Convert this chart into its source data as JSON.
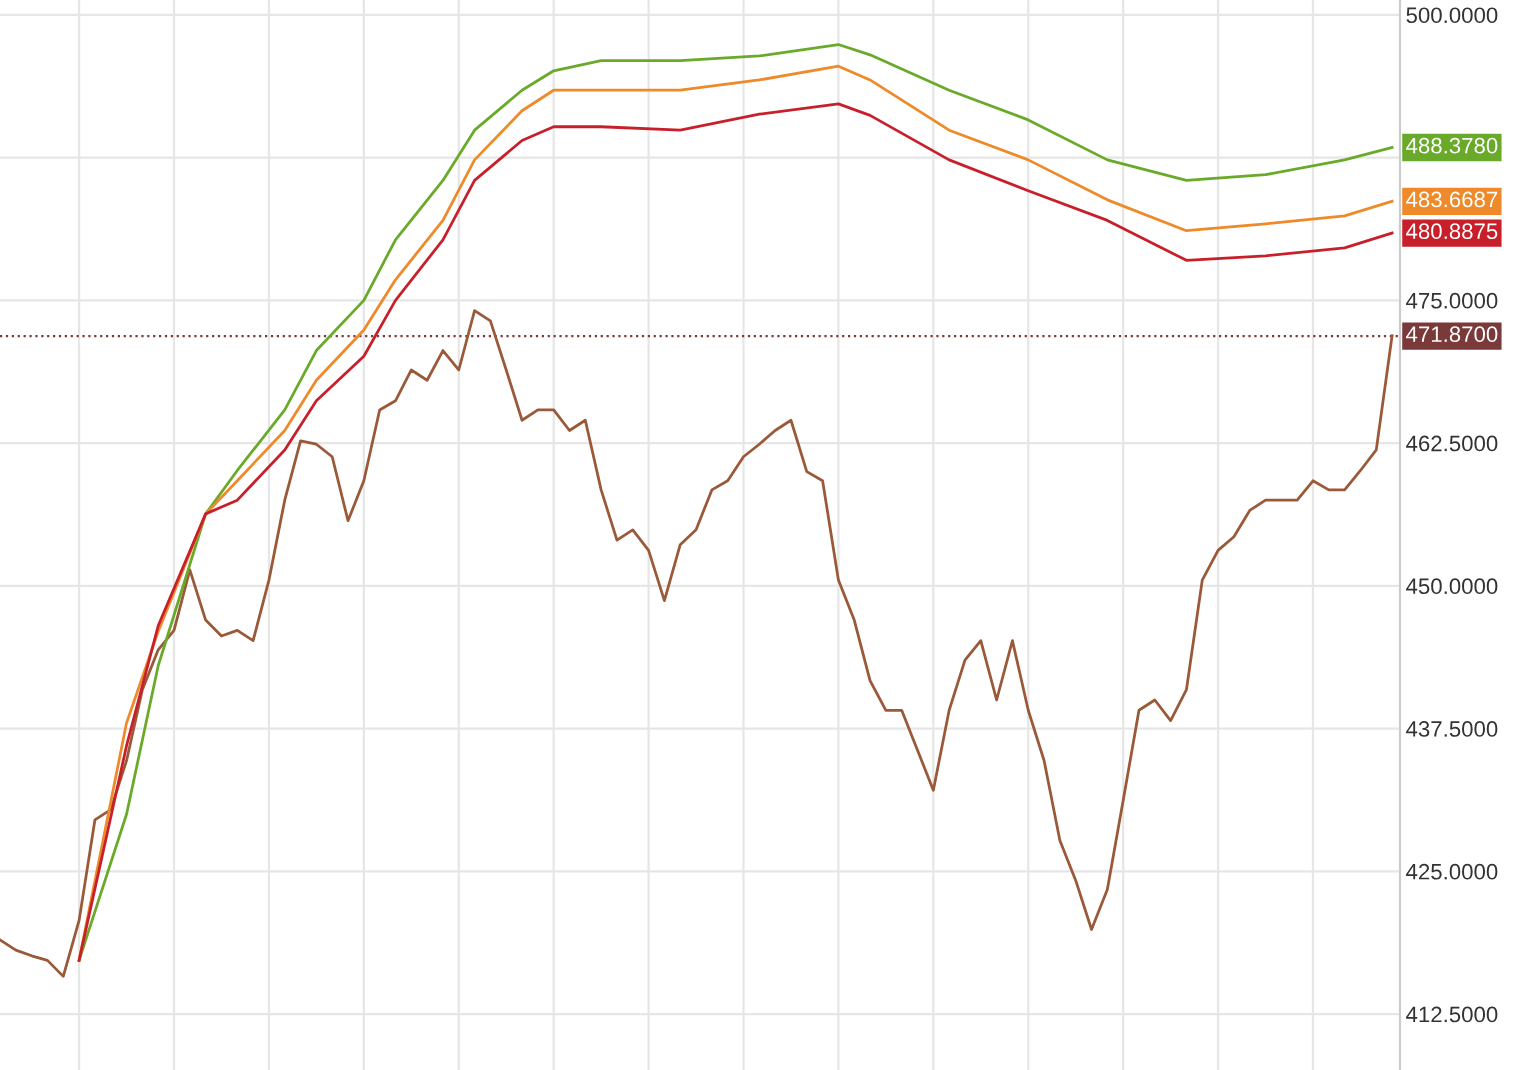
{
  "chart_data": {
    "type": "line",
    "categories": [
      null,
      null,
      null,
      null,
      null,
      null,
      null,
      null,
      null,
      null,
      null,
      null,
      null,
      null,
      null,
      null,
      null,
      null,
      null,
      null,
      null,
      null,
      null,
      null,
      null,
      null,
      null,
      null,
      null,
      null,
      null,
      null,
      null,
      null,
      null,
      null,
      null,
      null,
      null,
      null,
      null,
      null,
      null,
      null,
      null,
      null,
      null,
      null,
      null,
      null,
      null,
      null,
      null,
      null,
      null,
      null,
      null,
      null,
      null,
      null,
      null,
      null,
      null,
      null,
      null,
      null,
      null,
      null,
      null,
      null,
      null,
      null,
      null,
      null,
      null,
      null,
      null,
      null,
      null,
      null,
      null,
      null,
      null,
      null,
      null,
      null,
      null,
      null,
      null
    ],
    "series": [
      {
        "color": "#9a5a3a",
        "values": [
          419.0,
          418.1,
          417.6,
          417.2,
          415.8,
          420.7,
          429.5,
          430.4,
          434.7,
          440.9,
          444.4,
          446.1,
          451.4,
          447.0,
          445.6,
          446.1,
          445.2,
          450.5,
          457.5,
          462.7,
          462.4,
          461.3,
          455.7,
          459.2,
          465.4,
          466.2,
          468.9,
          468.0,
          470.6,
          468.9,
          474.1,
          473.2,
          468.9,
          464.5,
          465.4,
          465.4,
          463.6,
          464.5,
          458.4,
          454.0,
          454.9,
          453.1,
          448.7,
          453.6,
          454.9,
          458.4,
          459.2,
          461.3,
          462.4,
          463.6,
          464.5,
          460.0,
          459.2,
          450.5,
          447.0,
          441.7,
          439.1,
          439.1,
          435.6,
          432.1,
          439.1,
          443.5,
          445.2,
          440.0,
          445.2,
          439.1,
          434.7,
          427.7,
          424.2,
          419.9,
          423.4,
          431.2,
          439.1,
          440.0,
          438.2,
          440.9,
          450.5,
          453.1,
          454.3,
          456.6,
          457.5,
          457.5,
          457.5,
          459.2,
          458.4,
          458.4,
          460.1,
          461.9,
          471.9
        ]
      },
      {
        "color": "#6aaa2a",
        "values": [
          null,
          null,
          null,
          null,
          null,
          417.2,
          null,
          null,
          430.0,
          null,
          443.0,
          null,
          null,
          456.3,
          null,
          460.1,
          null,
          null,
          465.4,
          null,
          470.6,
          null,
          null,
          475.0,
          null,
          480.3,
          null,
          null,
          485.5,
          null,
          489.9,
          null,
          null,
          493.4,
          null,
          495.1,
          null,
          null,
          496.0,
          null,
          null,
          null,
          null,
          496.0,
          null,
          null,
          null,
          null,
          496.4,
          null,
          null,
          null,
          null,
          497.4,
          null,
          496.5,
          null,
          null,
          null,
          null,
          493.4,
          null,
          null,
          null,
          null,
          490.8,
          null,
          null,
          null,
          null,
          487.3,
          null,
          null,
          null,
          null,
          485.5,
          null,
          null,
          null,
          null,
          486.0,
          null,
          null,
          null,
          null,
          487.3,
          null,
          null,
          488.378
        ],
        "value_labels": [
          null,
          null,
          null,
          null,
          null,
          null,
          null,
          null,
          null,
          null,
          null,
          null,
          null,
          null,
          null,
          null,
          null,
          null,
          null,
          null,
          null,
          null,
          null,
          null,
          null,
          null,
          null,
          null,
          null,
          null,
          null,
          null,
          null,
          null,
          null,
          null,
          null,
          null,
          null,
          null,
          null,
          null,
          null,
          null,
          null,
          null,
          null,
          null,
          null,
          null,
          null,
          null,
          null,
          null,
          null,
          null,
          null,
          null,
          null,
          null,
          null,
          null,
          null,
          null,
          null,
          null,
          null,
          null,
          null,
          null,
          null,
          null,
          null,
          null,
          null,
          null,
          null,
          null,
          null,
          null,
          null,
          null,
          null,
          null,
          null,
          null,
          null,
          null,
          "488.3780"
        ]
      },
      {
        "color": "#ee8a2a",
        "values": [
          null,
          null,
          null,
          null,
          null,
          417.2,
          null,
          null,
          438.0,
          null,
          446.0,
          null,
          null,
          456.3,
          null,
          459.2,
          null,
          null,
          463.6,
          null,
          468.0,
          null,
          null,
          472.4,
          null,
          476.8,
          null,
          null,
          482.0,
          null,
          487.3,
          null,
          null,
          491.6,
          null,
          493.4,
          null,
          null,
          493.4,
          null,
          null,
          null,
          null,
          493.4,
          null,
          null,
          null,
          null,
          494.3,
          null,
          null,
          null,
          null,
          495.5,
          null,
          494.3,
          null,
          null,
          null,
          null,
          489.9,
          null,
          null,
          null,
          null,
          487.3,
          null,
          null,
          null,
          null,
          483.8,
          null,
          null,
          null,
          null,
          481.1,
          null,
          null,
          null,
          null,
          481.7,
          null,
          null,
          null,
          null,
          482.4,
          null,
          null,
          483.6687
        ],
        "value_labels": [
          null,
          null,
          null,
          null,
          null,
          null,
          null,
          null,
          null,
          null,
          null,
          null,
          null,
          null,
          null,
          null,
          null,
          null,
          null,
          null,
          null,
          null,
          null,
          null,
          null,
          null,
          null,
          null,
          null,
          null,
          null,
          null,
          null,
          null,
          null,
          null,
          null,
          null,
          null,
          null,
          null,
          null,
          null,
          null,
          null,
          null,
          null,
          null,
          null,
          null,
          null,
          null,
          null,
          null,
          null,
          null,
          null,
          null,
          null,
          null,
          null,
          null,
          null,
          null,
          null,
          null,
          null,
          null,
          null,
          null,
          null,
          null,
          null,
          null,
          null,
          null,
          null,
          null,
          null,
          null,
          null,
          null,
          null,
          null,
          null,
          null,
          null,
          null,
          "483.6687"
        ]
      },
      {
        "color": "#c8202a",
        "values": [
          null,
          null,
          null,
          null,
          null,
          417.2,
          null,
          null,
          436.0,
          null,
          446.5,
          null,
          null,
          456.3,
          null,
          457.5,
          null,
          null,
          461.9,
          null,
          466.2,
          null,
          null,
          470.1,
          null,
          475.0,
          null,
          null,
          480.3,
          null,
          485.5,
          null,
          null,
          489.0,
          null,
          490.2,
          null,
          null,
          490.2,
          null,
          null,
          null,
          null,
          489.9,
          null,
          null,
          null,
          null,
          491.3,
          null,
          null,
          null,
          null,
          492.2,
          null,
          491.2,
          null,
          null,
          null,
          null,
          487.3,
          null,
          null,
          null,
          null,
          484.6,
          null,
          null,
          null,
          null,
          482.0,
          null,
          null,
          null,
          null,
          478.5,
          null,
          null,
          null,
          null,
          478.9,
          null,
          null,
          null,
          null,
          479.6,
          null,
          null,
          480.8875
        ],
        "value_labels": [
          null,
          null,
          null,
          null,
          null,
          null,
          null,
          null,
          null,
          null,
          null,
          null,
          null,
          null,
          null,
          null,
          null,
          null,
          null,
          null,
          null,
          null,
          null,
          null,
          null,
          null,
          null,
          null,
          null,
          null,
          null,
          null,
          null,
          null,
          null,
          null,
          null,
          null,
          null,
          null,
          null,
          null,
          null,
          null,
          null,
          null,
          null,
          null,
          null,
          null,
          null,
          null,
          null,
          null,
          null,
          null,
          null,
          null,
          null,
          null,
          null,
          null,
          null,
          null,
          null,
          null,
          null,
          null,
          null,
          null,
          null,
          null,
          null,
          null,
          null,
          null,
          null,
          null,
          null,
          null,
          null,
          null,
          null,
          null,
          null,
          null,
          null,
          null,
          "480.8875"
        ]
      }
    ],
    "ylim": [
      407.6,
      501.3
    ],
    "yticks": [
      {
        "value": 412.5,
        "label": "412.5000"
      },
      {
        "value": 425,
        "label": "425.0000"
      },
      {
        "value": 437.5,
        "label": "437.5000"
      },
      {
        "value": 450,
        "label": "450.0000"
      },
      {
        "value": 462.5,
        "label": "462.5000"
      },
      {
        "value": 475,
        "label": "475.0000"
      },
      {
        "value": 487.5,
        "label": null
      },
      {
        "value": 500,
        "label": "500.0000"
      }
    ],
    "ref_lines": [
      {
        "axis": "y",
        "value": 471.87,
        "label": "471.8700",
        "color": "#7a3a3a",
        "line_style": "dotted"
      }
    ],
    "grid": true,
    "marker": "none",
    "line_style": "solid"
  }
}
